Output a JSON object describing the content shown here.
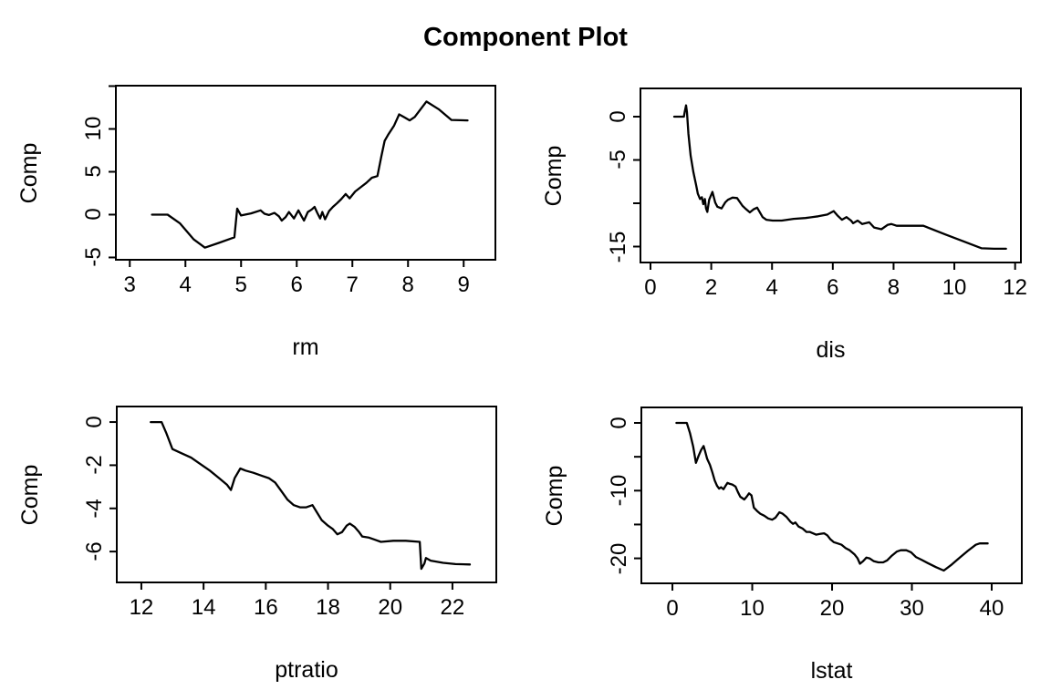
{
  "title": "Component Plot",
  "colors": {
    "background": "#ffffff",
    "line": "#000000",
    "axis": "#000000"
  },
  "chart_data": [
    {
      "type": "line",
      "xlabel": "rm",
      "ylabel": "Comp",
      "xlim": [
        2.75,
        9.57
      ],
      "ylim": [
        -5.27,
        15.05
      ],
      "xticks": [
        3,
        4,
        5,
        6,
        7,
        8,
        9
      ],
      "xtick_labels": [
        "3",
        "4",
        "5",
        "6",
        "7",
        "8",
        "9"
      ],
      "yticks": [
        -5,
        0,
        5,
        10,
        15
      ],
      "ytick_labels": [
        "-5",
        "0",
        "5",
        "10",
        ""
      ],
      "grid": false,
      "points": [
        [
          3.4,
          0
        ],
        [
          3.68,
          0
        ],
        [
          3.9,
          -1.0
        ],
        [
          4.15,
          -2.9
        ],
        [
          4.35,
          -3.85
        ],
        [
          4.6,
          -3.3
        ],
        [
          4.88,
          -2.65
        ],
        [
          4.93,
          0.7
        ],
        [
          5.0,
          -0.1
        ],
        [
          5.18,
          0.15
        ],
        [
          5.35,
          0.5
        ],
        [
          5.42,
          0.1
        ],
        [
          5.5,
          -0.05
        ],
        [
          5.6,
          0.2
        ],
        [
          5.68,
          -0.2
        ],
        [
          5.73,
          -0.7
        ],
        [
          5.8,
          -0.3
        ],
        [
          5.86,
          0.3
        ],
        [
          5.95,
          -0.45
        ],
        [
          6.03,
          0.5
        ],
        [
          6.08,
          -0.1
        ],
        [
          6.13,
          -0.7
        ],
        [
          6.2,
          0.3
        ],
        [
          6.27,
          0.6
        ],
        [
          6.32,
          0.9
        ],
        [
          6.37,
          0.2
        ],
        [
          6.42,
          -0.45
        ],
        [
          6.46,
          0.3
        ],
        [
          6.51,
          -0.55
        ],
        [
          6.58,
          0.4
        ],
        [
          6.65,
          0.9
        ],
        [
          6.72,
          1.3
        ],
        [
          6.8,
          1.8
        ],
        [
          6.88,
          2.4
        ],
        [
          6.95,
          1.9
        ],
        [
          7.05,
          2.7
        ],
        [
          7.15,
          3.2
        ],
        [
          7.25,
          3.7
        ],
        [
          7.35,
          4.3
        ],
        [
          7.45,
          4.5
        ],
        [
          7.52,
          6.8
        ],
        [
          7.58,
          8.6
        ],
        [
          7.65,
          9.4
        ],
        [
          7.75,
          10.4
        ],
        [
          7.84,
          11.7
        ],
        [
          7.95,
          11.3
        ],
        [
          8.03,
          11.0
        ],
        [
          8.12,
          11.4
        ],
        [
          8.33,
          13.2
        ],
        [
          8.55,
          12.3
        ],
        [
          8.78,
          11.05
        ],
        [
          9.07,
          11.0
        ]
      ]
    },
    {
      "type": "line",
      "xlabel": "dis",
      "ylabel": "Comp",
      "xlim": [
        -0.33,
        12.19
      ],
      "ylim": [
        -16.84,
        3.26
      ],
      "xticks": [
        0,
        2,
        4,
        6,
        8,
        10,
        12
      ],
      "xtick_labels": [
        "0",
        "2",
        "4",
        "6",
        "8",
        "10",
        "12"
      ],
      "yticks": [
        0,
        -5,
        -10,
        -15
      ],
      "ytick_labels": [
        "0",
        "-5",
        "",
        "-15"
      ],
      "grid": false,
      "points": [
        [
          0.78,
          0
        ],
        [
          1.1,
          0
        ],
        [
          1.13,
          0.6
        ],
        [
          1.17,
          1.3
        ],
        [
          1.2,
          0.5
        ],
        [
          1.25,
          -2.0
        ],
        [
          1.32,
          -4.5
        ],
        [
          1.41,
          -6.4
        ],
        [
          1.5,
          -7.9
        ],
        [
          1.56,
          -8.9
        ],
        [
          1.63,
          -9.5
        ],
        [
          1.69,
          -9.3
        ],
        [
          1.74,
          -10.1
        ],
        [
          1.79,
          -9.5
        ],
        [
          1.83,
          -10.6
        ],
        [
          1.87,
          -11.0
        ],
        [
          1.93,
          -9.6
        ],
        [
          2.04,
          -8.7
        ],
        [
          2.13,
          -9.9
        ],
        [
          2.2,
          -10.4
        ],
        [
          2.34,
          -10.6
        ],
        [
          2.46,
          -9.9
        ],
        [
          2.55,
          -9.6
        ],
        [
          2.7,
          -9.35
        ],
        [
          2.85,
          -9.4
        ],
        [
          3.03,
          -10.3
        ],
        [
          3.12,
          -10.6
        ],
        [
          3.27,
          -11.05
        ],
        [
          3.39,
          -10.7
        ],
        [
          3.51,
          -10.5
        ],
        [
          3.69,
          -11.6
        ],
        [
          3.81,
          -11.9
        ],
        [
          4.02,
          -12.0
        ],
        [
          4.32,
          -12.0
        ],
        [
          4.71,
          -11.8
        ],
        [
          5.1,
          -11.7
        ],
        [
          5.52,
          -11.5
        ],
        [
          5.82,
          -11.3
        ],
        [
          6.03,
          -10.9
        ],
        [
          6.15,
          -11.4
        ],
        [
          6.3,
          -11.9
        ],
        [
          6.45,
          -11.6
        ],
        [
          6.6,
          -12.0
        ],
        [
          6.67,
          -12.3
        ],
        [
          6.82,
          -12.0
        ],
        [
          6.97,
          -12.4
        ],
        [
          7.2,
          -12.2
        ],
        [
          7.36,
          -12.8
        ],
        [
          7.6,
          -13.0
        ],
        [
          7.8,
          -12.5
        ],
        [
          7.93,
          -12.4
        ],
        [
          8.1,
          -12.6
        ],
        [
          8.98,
          -12.6
        ],
        [
          9.7,
          -13.6
        ],
        [
          10.3,
          -14.4
        ],
        [
          10.9,
          -15.2
        ],
        [
          11.3,
          -15.25
        ],
        [
          11.7,
          -15.25
        ]
      ]
    },
    {
      "type": "line",
      "xlabel": "ptratio",
      "ylabel": "Comp",
      "xlim": [
        11.21,
        23.41
      ],
      "ylim": [
        -7.43,
        0.72
      ],
      "xticks": [
        12,
        14,
        16,
        18,
        20,
        22
      ],
      "xtick_labels": [
        "12",
        "14",
        "16",
        "18",
        "20",
        "22"
      ],
      "yticks": [
        0,
        -2,
        -4,
        -6
      ],
      "ytick_labels": [
        "0",
        "-2",
        "-4",
        "-6"
      ],
      "grid": false,
      "points": [
        [
          12.3,
          0
        ],
        [
          12.65,
          0
        ],
        [
          12.8,
          -0.5
        ],
        [
          13.0,
          -1.25
        ],
        [
          13.3,
          -1.45
        ],
        [
          13.6,
          -1.65
        ],
        [
          13.9,
          -1.95
        ],
        [
          14.2,
          -2.25
        ],
        [
          14.5,
          -2.6
        ],
        [
          14.75,
          -2.9
        ],
        [
          14.88,
          -3.15
        ],
        [
          15.0,
          -2.6
        ],
        [
          15.18,
          -2.15
        ],
        [
          15.35,
          -2.25
        ],
        [
          15.6,
          -2.35
        ],
        [
          15.9,
          -2.5
        ],
        [
          16.1,
          -2.6
        ],
        [
          16.3,
          -2.8
        ],
        [
          16.5,
          -3.2
        ],
        [
          16.7,
          -3.6
        ],
        [
          16.9,
          -3.85
        ],
        [
          17.1,
          -3.95
        ],
        [
          17.3,
          -3.95
        ],
        [
          17.5,
          -3.85
        ],
        [
          17.65,
          -4.2
        ],
        [
          17.8,
          -4.55
        ],
        [
          18.0,
          -4.8
        ],
        [
          18.15,
          -4.95
        ],
        [
          18.3,
          -5.2
        ],
        [
          18.45,
          -5.1
        ],
        [
          18.6,
          -4.8
        ],
        [
          18.7,
          -4.7
        ],
        [
          18.85,
          -4.85
        ],
        [
          19.0,
          -5.1
        ],
        [
          19.1,
          -5.3
        ],
        [
          19.3,
          -5.35
        ],
        [
          19.5,
          -5.45
        ],
        [
          19.7,
          -5.55
        ],
        [
          20.1,
          -5.5
        ],
        [
          20.5,
          -5.5
        ],
        [
          20.95,
          -5.55
        ],
        [
          21.0,
          -6.8
        ],
        [
          21.1,
          -6.55
        ],
        [
          21.15,
          -6.3
        ],
        [
          21.3,
          -6.42
        ],
        [
          21.7,
          -6.52
        ],
        [
          22.1,
          -6.58
        ],
        [
          22.56,
          -6.6
        ]
      ]
    },
    {
      "type": "line",
      "xlabel": "lstat",
      "ylabel": "Comp",
      "xlim": [
        -3.89,
        43.77
      ],
      "ylim": [
        -23.69,
        2.29
      ],
      "xticks": [
        0,
        10,
        20,
        30,
        40
      ],
      "xtick_labels": [
        "0",
        "10",
        "20",
        "30",
        "40"
      ],
      "yticks": [
        0,
        -5,
        -10,
        -15,
        -20
      ],
      "ytick_labels": [
        "0",
        "",
        "-10",
        "",
        "-20"
      ],
      "grid": false,
      "points": [
        [
          0.5,
          0
        ],
        [
          1.8,
          0
        ],
        [
          2.2,
          -1.5
        ],
        [
          2.6,
          -3.5
        ],
        [
          2.95,
          -5.9
        ],
        [
          3.3,
          -4.8
        ],
        [
          3.6,
          -4.0
        ],
        [
          3.9,
          -3.4
        ],
        [
          4.1,
          -4.2
        ],
        [
          4.35,
          -5.3
        ],
        [
          4.7,
          -6.2
        ],
        [
          5.0,
          -7.3
        ],
        [
          5.3,
          -8.5
        ],
        [
          5.6,
          -9.3
        ],
        [
          5.85,
          -9.7
        ],
        [
          6.1,
          -9.5
        ],
        [
          6.4,
          -9.8
        ],
        [
          6.65,
          -9.3
        ],
        [
          6.9,
          -8.85
        ],
        [
          7.2,
          -9.0
        ],
        [
          7.5,
          -9.1
        ],
        [
          7.9,
          -9.4
        ],
        [
          8.2,
          -10.2
        ],
        [
          8.5,
          -10.9
        ],
        [
          9.0,
          -11.3
        ],
        [
          9.3,
          -10.9
        ],
        [
          9.6,
          -10.4
        ],
        [
          9.9,
          -10.7
        ],
        [
          10.2,
          -12.5
        ],
        [
          10.6,
          -13.0
        ],
        [
          11.0,
          -13.4
        ],
        [
          11.5,
          -13.7
        ],
        [
          12.0,
          -14.1
        ],
        [
          12.5,
          -14.3
        ],
        [
          12.9,
          -14.0
        ],
        [
          13.4,
          -13.2
        ],
        [
          13.8,
          -13.4
        ],
        [
          14.3,
          -13.9
        ],
        [
          14.8,
          -14.6
        ],
        [
          15.1,
          -14.9
        ],
        [
          15.4,
          -14.7
        ],
        [
          15.8,
          -15.3
        ],
        [
          16.3,
          -15.6
        ],
        [
          16.8,
          -16.1
        ],
        [
          17.2,
          -16.1
        ],
        [
          17.6,
          -16.3
        ],
        [
          18.0,
          -16.5
        ],
        [
          18.5,
          -16.4
        ],
        [
          19.0,
          -16.3
        ],
        [
          19.4,
          -16.6
        ],
        [
          19.8,
          -17.2
        ],
        [
          20.2,
          -17.6
        ],
        [
          20.7,
          -17.8
        ],
        [
          21.2,
          -18.0
        ],
        [
          21.7,
          -18.5
        ],
        [
          22.2,
          -18.8
        ],
        [
          22.8,
          -19.4
        ],
        [
          23.2,
          -20.0
        ],
        [
          23.5,
          -20.8
        ],
        [
          23.9,
          -20.4
        ],
        [
          24.3,
          -19.9
        ],
        [
          24.7,
          -20.0
        ],
        [
          25.2,
          -20.4
        ],
        [
          25.8,
          -20.6
        ],
        [
          26.4,
          -20.6
        ],
        [
          26.9,
          -20.3
        ],
        [
          27.5,
          -19.6
        ],
        [
          28.1,
          -19.0
        ],
        [
          28.6,
          -18.8
        ],
        [
          29.3,
          -18.8
        ],
        [
          29.9,
          -19.1
        ],
        [
          30.5,
          -19.8
        ],
        [
          31.2,
          -20.2
        ],
        [
          32.0,
          -20.7
        ],
        [
          33.0,
          -21.3
        ],
        [
          34.0,
          -21.8
        ],
        [
          35.0,
          -20.9
        ],
        [
          36.0,
          -19.9
        ],
        [
          37.0,
          -18.9
        ],
        [
          38.0,
          -18.0
        ],
        [
          38.5,
          -17.8
        ],
        [
          39.5,
          -17.8
        ]
      ]
    }
  ]
}
